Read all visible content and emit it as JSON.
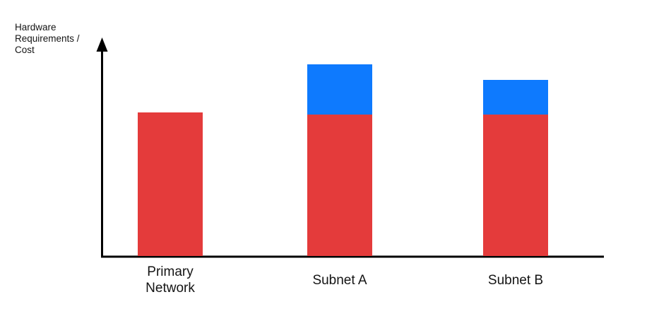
{
  "chart": {
    "y_axis_label": "Hardware Requirements / Cost"
  },
  "colors": {
    "bar_red": "#E43B3B",
    "bar_blue": "#0E7AFE",
    "axis": "#000000",
    "text": "#141414",
    "background": "#FFFFFF"
  },
  "chart_data": {
    "type": "bar",
    "stacked": true,
    "title": "",
    "xlabel": "",
    "ylabel": "Hardware Requirements / Cost",
    "categories": [
      "Primary Network",
      "Subnet A",
      "Subnet B"
    ],
    "series": [
      {
        "name": "red-segment",
        "color": "#E43B3B",
        "values": [
          66,
          65,
          65
        ]
      },
      {
        "name": "blue-segment",
        "color": "#0E7AFE",
        "values": [
          0,
          23,
          16
        ]
      }
    ],
    "value_units": "percent-of-axis-height",
    "ylim": [
      0,
      100
    ],
    "axis_ticks": "none",
    "grid": false,
    "legend": "none"
  }
}
